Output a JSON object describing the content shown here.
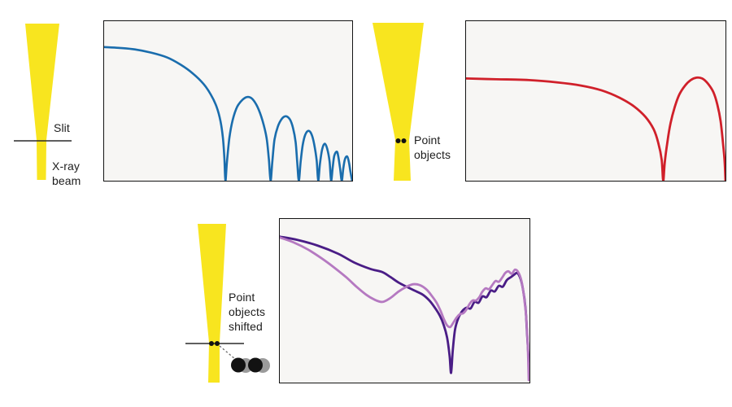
{
  "palette": {
    "beam_yellow": "#f8e51f",
    "line_dark": "#2a2a2a",
    "line_gray": "#6b6b6b",
    "dot_black": "#121212",
    "ghost_gray": "#9b9b9b",
    "chart_bg": "#f7f6f4",
    "chart_border": "#141414",
    "blue": "#1a6dad",
    "red": "#d0202a",
    "dark_violet": "#4a1d86",
    "light_orchid": "#b579c1"
  },
  "labels": {
    "slit": "Slit",
    "xray_beam": "X-ray beam",
    "point_objects": "Point objects",
    "point_objects_shifted": "Point objects shifted"
  },
  "chart_data": [
    {
      "id": "slit-diffraction-pattern",
      "type": "line",
      "title": "",
      "x_axis": {
        "label": "",
        "ticks": []
      },
      "y_axis": {
        "label": "",
        "ticks": []
      },
      "frame": true,
      "coords": "normalized 0-1, y measured down from plot top",
      "series": [
        {
          "name": "slit-intensity",
          "color": "#1a6dad",
          "stroke_width": 2.6,
          "points": [
            [
              0,
              0.162
            ],
            [
              0.059,
              0.167
            ],
            [
              0.124,
              0.177
            ],
            [
              0.189,
              0.197
            ],
            [
              0.254,
              0.227
            ],
            [
              0.309,
              0.273
            ],
            [
              0.358,
              0.328
            ],
            [
              0.401,
              0.394
            ],
            [
              0.43,
              0.46
            ],
            [
              0.453,
              0.535
            ],
            [
              0.469,
              0.626
            ],
            [
              0.479,
              0.732
            ],
            [
              0.485,
              0.859
            ],
            [
              0.489,
              1
            ],
            [
              0.495,
              0.884
            ],
            [
              0.505,
              0.732
            ],
            [
              0.518,
              0.621
            ],
            [
              0.537,
              0.535
            ],
            [
              0.56,
              0.49
            ],
            [
              0.58,
              0.475
            ],
            [
              0.599,
              0.49
            ],
            [
              0.619,
              0.54
            ],
            [
              0.638,
              0.621
            ],
            [
              0.655,
              0.732
            ],
            [
              0.664,
              0.864
            ],
            [
              0.671,
              1
            ],
            [
              0.678,
              0.884
            ],
            [
              0.687,
              0.742
            ],
            [
              0.7,
              0.662
            ],
            [
              0.717,
              0.611
            ],
            [
              0.733,
              0.596
            ],
            [
              0.749,
              0.616
            ],
            [
              0.762,
              0.672
            ],
            [
              0.772,
              0.758
            ],
            [
              0.778,
              0.874
            ],
            [
              0.785,
              1
            ],
            [
              0.792,
              0.884
            ],
            [
              0.801,
              0.773
            ],
            [
              0.811,
              0.712
            ],
            [
              0.824,
              0.687
            ],
            [
              0.837,
              0.712
            ],
            [
              0.847,
              0.773
            ],
            [
              0.857,
              0.874
            ],
            [
              0.863,
              1
            ],
            [
              0.87,
              0.894
            ],
            [
              0.879,
              0.803
            ],
            [
              0.889,
              0.768
            ],
            [
              0.899,
              0.798
            ],
            [
              0.909,
              0.879
            ],
            [
              0.915,
              1
            ],
            [
              0.922,
              0.909
            ],
            [
              0.928,
              0.843
            ],
            [
              0.938,
              0.818
            ],
            [
              0.944,
              0.848
            ],
            [
              0.951,
              0.919
            ],
            [
              0.958,
              1
            ],
            [
              0.964,
              0.924
            ],
            [
              0.971,
              0.864
            ],
            [
              0.98,
              0.848
            ],
            [
              0.987,
              0.884
            ],
            [
              0.993,
              0.944
            ],
            [
              1,
              1
            ]
          ]
        }
      ]
    },
    {
      "id": "point-objects-pattern",
      "type": "line",
      "title": "",
      "x_axis": {
        "label": "",
        "ticks": []
      },
      "y_axis": {
        "label": "",
        "ticks": []
      },
      "frame": true,
      "coords": "normalized 0-1, y measured down from plot top",
      "series": [
        {
          "name": "two-point-intensity",
          "color": "#d0202a",
          "stroke_width": 2.8,
          "points": [
            [
              0,
              0.359
            ],
            [
              0.118,
              0.364
            ],
            [
              0.243,
              0.369
            ],
            [
              0.352,
              0.384
            ],
            [
              0.445,
              0.404
            ],
            [
              0.523,
              0.434
            ],
            [
              0.592,
              0.48
            ],
            [
              0.648,
              0.535
            ],
            [
              0.692,
              0.601
            ],
            [
              0.723,
              0.677
            ],
            [
              0.741,
              0.763
            ],
            [
              0.754,
              0.869
            ],
            [
              0.76,
              1
            ],
            [
              0.766,
              0.884
            ],
            [
              0.776,
              0.758
            ],
            [
              0.788,
              0.641
            ],
            [
              0.804,
              0.54
            ],
            [
              0.822,
              0.46
            ],
            [
              0.844,
              0.404
            ],
            [
              0.866,
              0.369
            ],
            [
              0.888,
              0.354
            ],
            [
              0.91,
              0.359
            ],
            [
              0.931,
              0.389
            ],
            [
              0.953,
              0.444
            ],
            [
              0.969,
              0.525
            ],
            [
              0.981,
              0.626
            ],
            [
              0.991,
              0.773
            ],
            [
              0.997,
              0.884
            ],
            [
              1,
              1
            ]
          ]
        }
      ]
    },
    {
      "id": "shifted-point-objects-pattern",
      "type": "line",
      "title": "",
      "x_axis": {
        "label": "",
        "ticks": []
      },
      "y_axis": {
        "label": "",
        "ticks": []
      },
      "frame": true,
      "coords": "normalized 0-1, y measured down from plot top",
      "series": [
        {
          "name": "series-dark",
          "color": "#4a1d86",
          "stroke_width": 2.8,
          "points": [
            [
              0,
              0.108
            ],
            [
              0.071,
              0.128
            ],
            [
              0.152,
              0.163
            ],
            [
              0.233,
              0.212
            ],
            [
              0.298,
              0.266
            ],
            [
              0.362,
              0.305
            ],
            [
              0.411,
              0.325
            ],
            [
              0.443,
              0.355
            ],
            [
              0.476,
              0.389
            ],
            [
              0.508,
              0.414
            ],
            [
              0.54,
              0.438
            ],
            [
              0.573,
              0.463
            ],
            [
              0.599,
              0.498
            ],
            [
              0.621,
              0.542
            ],
            [
              0.641,
              0.591
            ],
            [
              0.657,
              0.65
            ],
            [
              0.67,
              0.724
            ],
            [
              0.68,
              0.837
            ],
            [
              0.686,
              0.941
            ],
            [
              0.693,
              0.798
            ],
            [
              0.702,
              0.675
            ],
            [
              0.715,
              0.606
            ],
            [
              0.731,
              0.562
            ],
            [
              0.748,
              0.542
            ],
            [
              0.764,
              0.547
            ],
            [
              0.78,
              0.507
            ],
            [
              0.796,
              0.512
            ],
            [
              0.812,
              0.473
            ],
            [
              0.828,
              0.478
            ],
            [
              0.845,
              0.438
            ],
            [
              0.861,
              0.443
            ],
            [
              0.877,
              0.409
            ],
            [
              0.893,
              0.414
            ],
            [
              0.909,
              0.374
            ],
            [
              0.926,
              0.355
            ],
            [
              0.939,
              0.34
            ],
            [
              0.951,
              0.33
            ],
            [
              0.964,
              0.365
            ],
            [
              0.974,
              0.429
            ],
            [
              0.984,
              0.542
            ],
            [
              0.99,
              0.69
            ],
            [
              0.997,
              0.872
            ]
          ]
        },
        {
          "name": "series-light",
          "color": "#b579c1",
          "stroke_width": 2.8,
          "points": [
            [
              0,
              0.113
            ],
            [
              0.055,
              0.143
            ],
            [
              0.113,
              0.187
            ],
            [
              0.168,
              0.241
            ],
            [
              0.217,
              0.296
            ],
            [
              0.265,
              0.355
            ],
            [
              0.307,
              0.414
            ],
            [
              0.346,
              0.463
            ],
            [
              0.379,
              0.493
            ],
            [
              0.411,
              0.507
            ],
            [
              0.443,
              0.483
            ],
            [
              0.476,
              0.443
            ],
            [
              0.508,
              0.414
            ],
            [
              0.534,
              0.399
            ],
            [
              0.56,
              0.404
            ],
            [
              0.586,
              0.429
            ],
            [
              0.608,
              0.468
            ],
            [
              0.628,
              0.512
            ],
            [
              0.644,
              0.562
            ],
            [
              0.657,
              0.611
            ],
            [
              0.67,
              0.65
            ],
            [
              0.683,
              0.66
            ],
            [
              0.696,
              0.631
            ],
            [
              0.709,
              0.601
            ],
            [
              0.722,
              0.581
            ],
            [
              0.735,
              0.576
            ],
            [
              0.748,
              0.552
            ],
            [
              0.761,
              0.517
            ],
            [
              0.773,
              0.498
            ],
            [
              0.786,
              0.498
            ],
            [
              0.799,
              0.478
            ],
            [
              0.812,
              0.443
            ],
            [
              0.825,
              0.424
            ],
            [
              0.838,
              0.429
            ],
            [
              0.851,
              0.404
            ],
            [
              0.864,
              0.379
            ],
            [
              0.877,
              0.384
            ],
            [
              0.89,
              0.36
            ],
            [
              0.903,
              0.33
            ],
            [
              0.916,
              0.32
            ],
            [
              0.929,
              0.335
            ],
            [
              0.942,
              0.31
            ],
            [
              0.955,
              0.325
            ],
            [
              0.968,
              0.379
            ],
            [
              0.977,
              0.463
            ],
            [
              0.987,
              0.601
            ],
            [
              0.993,
              0.773
            ],
            [
              0.997,
              0.985
            ]
          ]
        }
      ]
    }
  ]
}
